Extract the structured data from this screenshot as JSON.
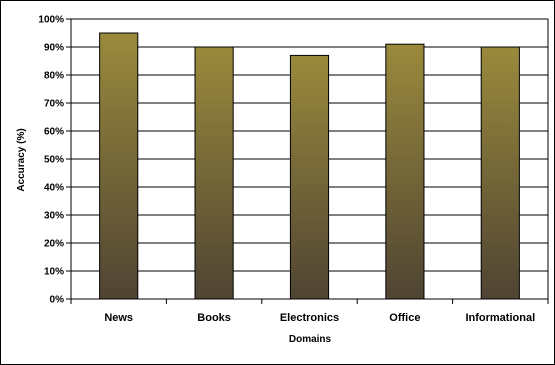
{
  "chart_data": {
    "type": "bar",
    "title": "",
    "xlabel": "Domains",
    "ylabel": "Accuracy (%)",
    "categories": [
      "News",
      "Books",
      "Electronics",
      "Office",
      "Informational"
    ],
    "values": [
      95,
      90,
      87,
      91,
      90
    ],
    "ylim": [
      0,
      100
    ],
    "yticks": [
      "0%",
      "10%",
      "20%",
      "30%",
      "40%",
      "50%",
      "60%",
      "70%",
      "80%",
      "90%",
      "100%"
    ],
    "grid": true,
    "legend": "none",
    "colors": {
      "bar_top": "#9a8a3c",
      "bar_bottom": "#4f4433",
      "bar_stroke": "#000000",
      "grid": "#000000"
    }
  }
}
